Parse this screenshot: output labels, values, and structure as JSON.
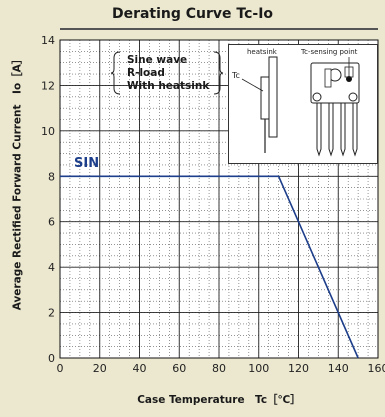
{
  "chart_data": {
    "type": "line",
    "title": "Derating Curve Tc-Io",
    "xlabel": "Case Temperature　Tc［℃］",
    "ylabel": "Average Rectified Forward Current　Io［A］",
    "xlim": [
      0,
      160
    ],
    "ylim": [
      0,
      14
    ],
    "xticks": [
      0,
      20,
      40,
      60,
      80,
      100,
      120,
      140,
      160
    ],
    "yticks": [
      0,
      2,
      4,
      6,
      8,
      10,
      12,
      14
    ],
    "grid": true,
    "series": [
      {
        "name": "SIN",
        "x": [
          0,
          110,
          150
        ],
        "y": [
          8,
          8,
          0
        ],
        "color": "#1d3e8a"
      }
    ],
    "conditions": [
      "Sine wave",
      "R-load",
      "With heatsink"
    ],
    "inset_labels": {
      "tc": "Tc",
      "heatsink": "heatsink",
      "sensing_point": "Tc-sensing point"
    }
  }
}
